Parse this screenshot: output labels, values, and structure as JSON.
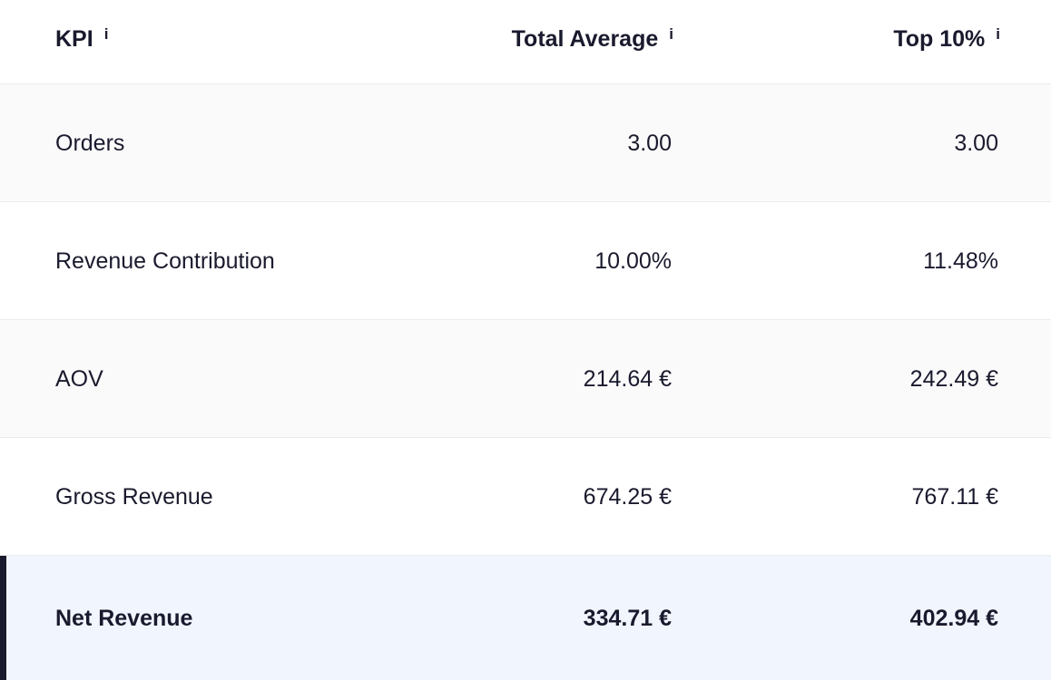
{
  "table": {
    "headers": {
      "kpi": "KPI",
      "total_average": "Total Average",
      "top_10": "Top 10%",
      "info_glyph": "i"
    },
    "rows": [
      {
        "kpi": "Orders",
        "total_average": "3.00",
        "top_10": "3.00"
      },
      {
        "kpi": "Revenue Contribution",
        "total_average": "10.00%",
        "top_10": "11.48%"
      },
      {
        "kpi": "AOV",
        "total_average": "214.64 €",
        "top_10": "242.49 €"
      },
      {
        "kpi": "Gross Revenue",
        "total_average": "674.25 €",
        "top_10": "767.11 €"
      },
      {
        "kpi": "Net Revenue",
        "total_average": "334.71 €",
        "top_10": "402.94 €"
      }
    ]
  },
  "colors": {
    "text": "#1a1a2e",
    "row_shaded": "#fafafa",
    "row_highlight": "#f1f5fd",
    "accent_bar": "#1a1a2e"
  }
}
